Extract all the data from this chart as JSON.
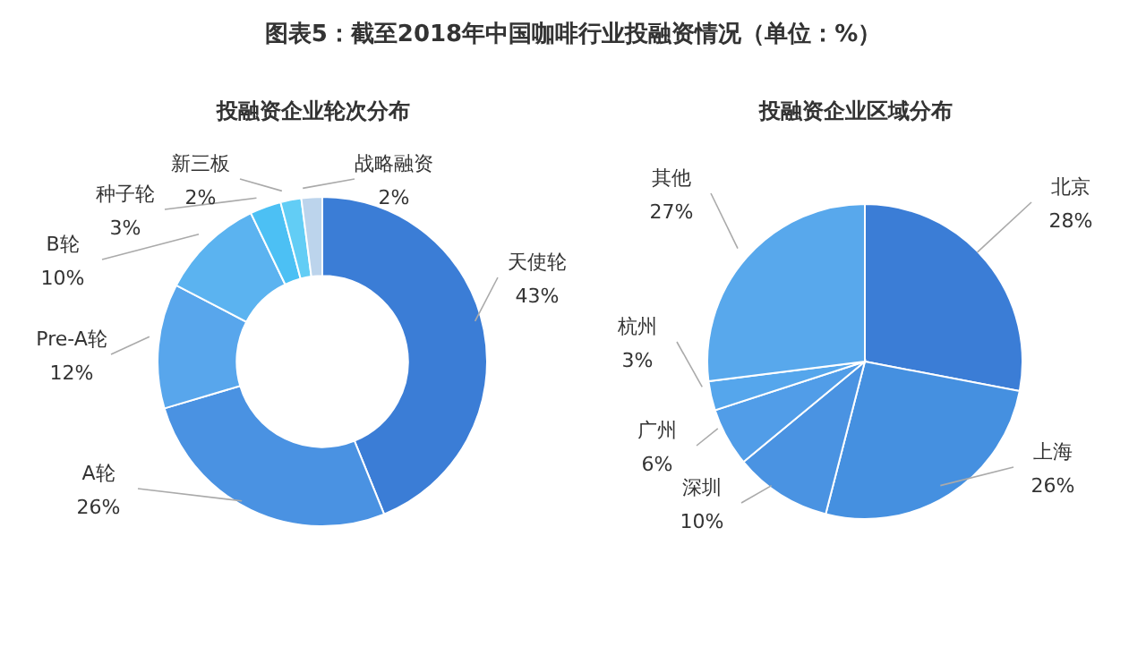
{
  "chart_data": [
    {
      "type": "donut",
      "title": "图表5：截至2018年中国咖啡行业投融资情况（单位：%）",
      "subtitle": "投融资企业轮次分布",
      "categories": [
        "天使轮",
        "A轮",
        "Pre-A轮",
        "B轮",
        "种子轮",
        "新三板",
        "战略融资"
      ],
      "values": [
        43,
        26,
        12,
        10,
        3,
        2,
        2
      ],
      "value_labels": [
        "43%",
        "26%",
        "12%",
        "10%",
        "3%",
        "2%",
        "2%"
      ],
      "colors": [
        "#3b7dd6",
        "#4a92e2",
        "#58a6ec",
        "#5bb3f0",
        "#4cc0f4",
        "#62cdf5",
        "#bcd4ec"
      ]
    },
    {
      "type": "pie",
      "subtitle": "投融资企业区域分布",
      "categories": [
        "北京",
        "上海",
        "深圳",
        "广州",
        "杭州",
        "其他"
      ],
      "values": [
        28,
        26,
        10,
        6,
        3,
        27
      ],
      "value_labels": [
        "28%",
        "26%",
        "10%",
        "6%",
        "3%",
        "27%"
      ],
      "colors": [
        "#3b7dd6",
        "#4590e0",
        "#4a93e2",
        "#519de8",
        "#55a6ec",
        "#58a8ec"
      ]
    }
  ]
}
